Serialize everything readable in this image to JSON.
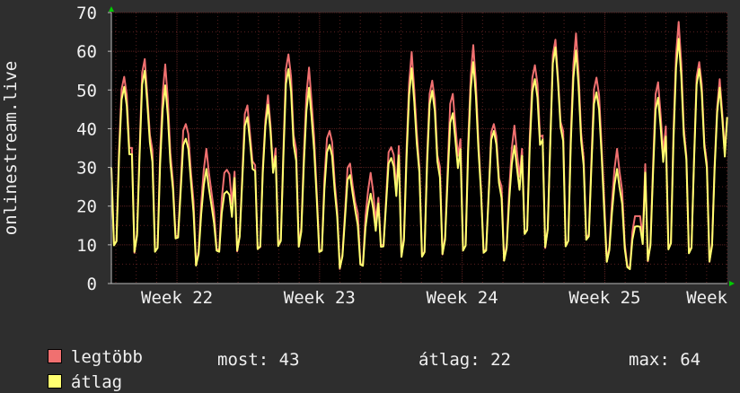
{
  "chart_data": {
    "type": "line",
    "ylabel": "onlinestream.live",
    "ylim": [
      0,
      70
    ],
    "yticks": [
      0,
      10,
      20,
      30,
      40,
      50,
      60,
      70
    ],
    "xlim": [
      21.54,
      25.86
    ],
    "xticks": [
      {
        "pos": 22,
        "label": "Week 22"
      },
      {
        "pos": 23,
        "label": "Week 23"
      },
      {
        "pos": 24,
        "label": "Week 24"
      },
      {
        "pos": 25,
        "label": "Week 25"
      },
      {
        "pos": 25.86,
        "label": "Week"
      }
    ],
    "grid": true,
    "colors": {
      "max": "#f07070",
      "avg": "#ffff70",
      "background": "#000000",
      "grid": "#5a2020"
    },
    "daily_peaks_max": [
      55,
      58,
      55,
      42,
      34,
      31,
      46,
      47,
      60,
      55,
      41,
      31,
      27,
      36,
      59,
      54,
      49,
      60,
      42,
      40,
      58,
      63,
      63,
      54,
      34,
      19,
      52,
      66,
      58,
      52
    ],
    "daily_peaks_avg": [
      52,
      55,
      50,
      38,
      29,
      25,
      43,
      45,
      56,
      50,
      37,
      28,
      22,
      33,
      55,
      51,
      44,
      56,
      40,
      35,
      54,
      61,
      59,
      50,
      29,
      16,
      48,
      62,
      56,
      50
    ],
    "daily_troughs": [
      7,
      7,
      6,
      9,
      4,
      7,
      8,
      7,
      6,
      8,
      6,
      4,
      4,
      7,
      5,
      4,
      7,
      6,
      5,
      5,
      10,
      8,
      7,
      8,
      5,
      3,
      5,
      6,
      4,
      4
    ],
    "last_value": 43
  },
  "legend": {
    "items": [
      {
        "label": "legtöbb",
        "color": "#f07070"
      },
      {
        "label": "átlag",
        "color": "#ffff70"
      }
    ],
    "stats": {
      "now": "most: 43",
      "avg": "átlag: 22",
      "max": "max: 64"
    }
  }
}
